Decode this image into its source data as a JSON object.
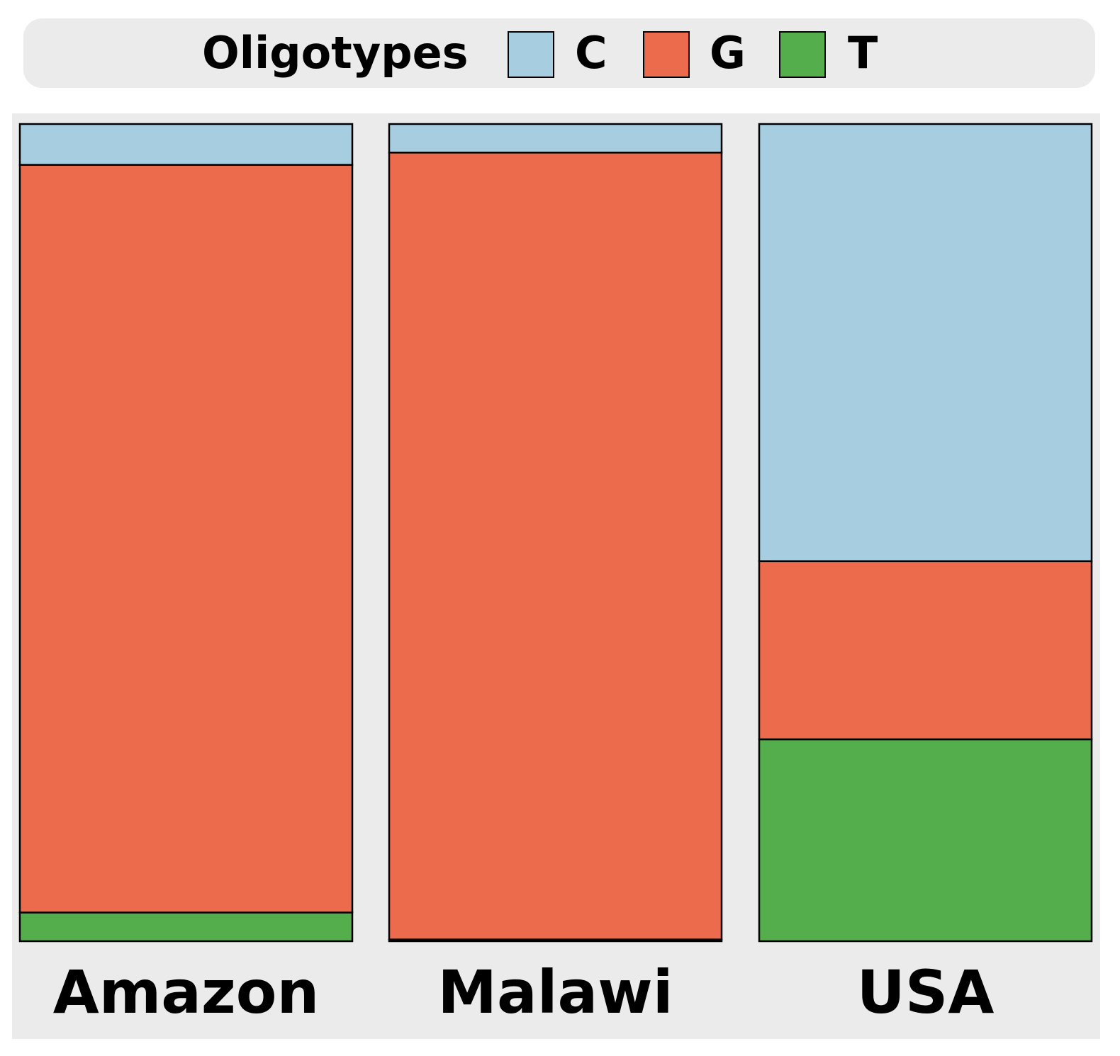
{
  "legend": {
    "title": "Oligotypes",
    "items": [
      {
        "label": "C",
        "color": "#a6cee0"
      },
      {
        "label": "G",
        "color": "#ed6b4d"
      },
      {
        "label": "T",
        "color": "#55ae4c"
      }
    ]
  },
  "chart_data": {
    "type": "bar",
    "stacked": true,
    "normalized": true,
    "categories": [
      "Amazon",
      "Malawi",
      "USA"
    ],
    "series": [
      {
        "name": "C",
        "color": "#a6cee0",
        "values": [
          0.05,
          0.035,
          0.535
        ]
      },
      {
        "name": "G",
        "color": "#ed6b4d",
        "values": [
          0.915,
          0.963,
          0.218
        ]
      },
      {
        "name": "T",
        "color": "#55ae4c",
        "values": [
          0.035,
          0.002,
          0.247
        ]
      }
    ],
    "ylim": [
      0,
      1
    ],
    "grid": false,
    "legend_position": "top"
  }
}
